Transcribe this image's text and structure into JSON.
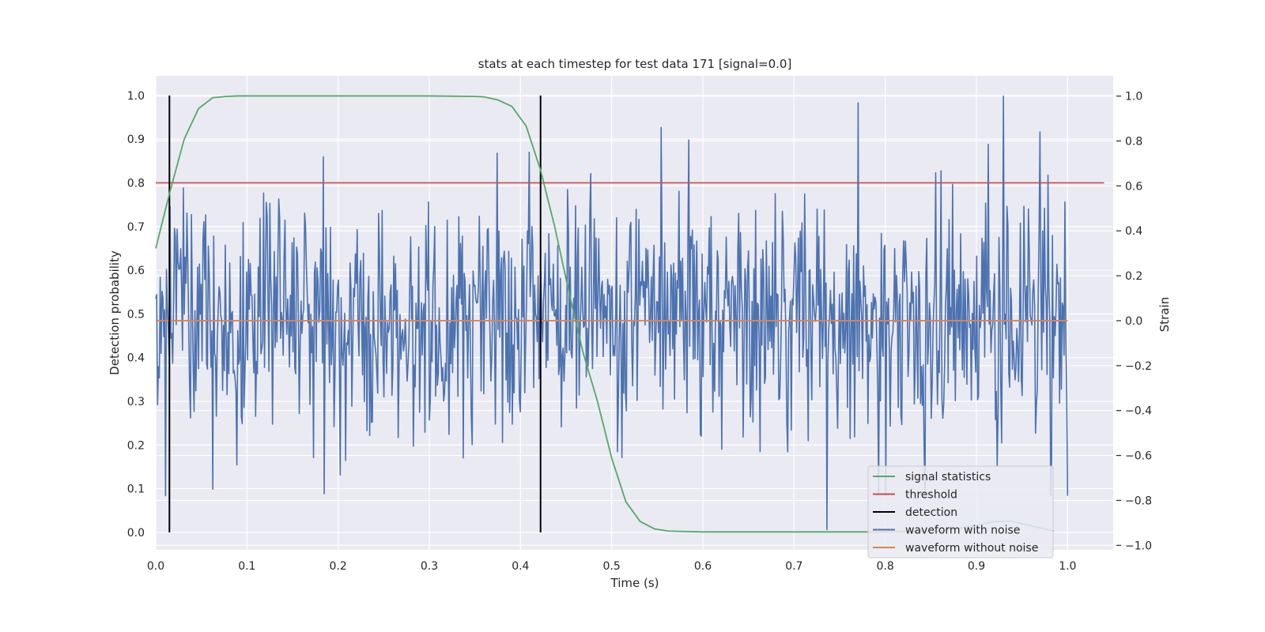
{
  "colors": {
    "plot_bg": "#eaeaf2",
    "grid": "#ffffff",
    "text": "#262626",
    "signal_statistics": "#55a868",
    "threshold": "#c44e52",
    "detection": "#000000",
    "waveform_with_noise": "#4c72b0",
    "waveform_without_noise": "#dd8452"
  },
  "chart_data": {
    "type": "line",
    "title": "stats at each timestep for test data 171 [signal=0.0]",
    "xlabel": "Time (s)",
    "ylabel_left": "Detection probability",
    "ylabel_right": "Strain",
    "xlim": [
      0.0,
      1.05
    ],
    "ylim_left": [
      -0.04,
      1.045
    ],
    "ylim_right": [
      -1.02,
      1.09
    ],
    "x_ticks": [
      "0.0",
      "0.1",
      "0.2",
      "0.3",
      "0.4",
      "0.5",
      "0.6",
      "0.7",
      "0.8",
      "0.9",
      "1.0"
    ],
    "y_ticks_left": [
      "0.0",
      "0.1",
      "0.2",
      "0.3",
      "0.4",
      "0.5",
      "0.6",
      "0.7",
      "0.8",
      "0.9",
      "1.0"
    ],
    "y_ticks_right": [
      "−1.0",
      "−0.8",
      "−0.6",
      "−0.4",
      "−0.2",
      "0.0",
      "0.2",
      "0.4",
      "0.6",
      "0.8",
      "1.0"
    ],
    "grid": true,
    "legend_position": "lower-right",
    "legend": [
      "signal statistics",
      "threshold",
      "detection",
      "waveform with noise",
      "waveform without noise"
    ],
    "signal_statistics": {
      "x": [
        0.0,
        0.0156,
        0.0312,
        0.0469,
        0.0625,
        0.0781,
        0.09,
        0.1,
        0.2,
        0.3,
        0.35,
        0.3594,
        0.375,
        0.3906,
        0.4062,
        0.4219,
        0.4375,
        0.4531,
        0.4688,
        0.4844,
        0.5,
        0.5156,
        0.5312,
        0.5469,
        0.5625,
        0.5781,
        0.6,
        0.8,
        0.86,
        0.89,
        0.92,
        0.94,
        0.96,
        0.985
      ],
      "y": [
        0.65,
        0.78,
        0.9,
        0.97,
        0.995,
        0.998,
        0.999,
        0.999,
        0.999,
        0.999,
        0.998,
        0.997,
        0.99,
        0.975,
        0.93,
        0.83,
        0.7,
        0.55,
        0.41,
        0.3,
        0.17,
        0.07,
        0.025,
        0.008,
        0.003,
        0.002,
        0.001,
        0.001,
        0.003,
        0.012,
        0.025,
        0.025,
        0.015,
        0.003
      ]
    },
    "threshold": {
      "y": 0.8,
      "x": [
        0.0,
        1.04
      ]
    },
    "detections": [
      {
        "x": 0.015,
        "y": [
          0.0,
          1.0
        ]
      },
      {
        "x": 0.422,
        "y": [
          0.0,
          1.0
        ]
      }
    ],
    "waveform_without_noise": {
      "y": 0.0,
      "x": [
        0.0,
        1.0
      ]
    },
    "waveform_with_noise": {
      "x_range": [
        0.0,
        1.0
      ],
      "samples": 1024,
      "approx_range": [
        -0.95,
        1.0
      ],
      "notable_points": [
        {
          "x": 0.063,
          "y": -0.75
        },
        {
          "x": 0.185,
          "y": -0.77
        },
        {
          "x": 0.184,
          "y": 0.73
        },
        {
          "x": 0.41,
          "y": 0.75
        },
        {
          "x": 0.554,
          "y": 0.86
        },
        {
          "x": 0.736,
          "y": -0.93
        },
        {
          "x": 0.77,
          "y": 0.97
        },
        {
          "x": 0.93,
          "y": 1.0
        },
        {
          "x": 0.97,
          "y": 0.84
        }
      ]
    }
  }
}
